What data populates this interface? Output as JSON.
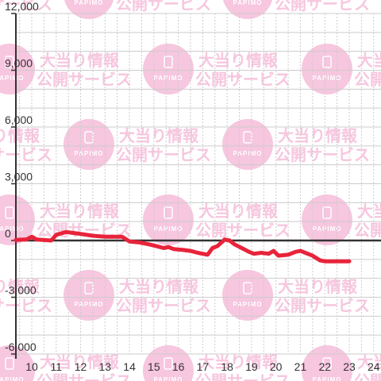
{
  "watermark": {
    "line1": "大当り情報",
    "line2": "公開サービス",
    "brand": "PAPIMO",
    "color": "#f7c6df"
  },
  "chart_data": {
    "type": "line",
    "series": [
      {
        "color": "#e8233a",
        "points": [
          [
            9.35,
            30
          ],
          [
            9.8,
            60
          ],
          [
            10.0,
            200
          ],
          [
            10.2,
            50
          ],
          [
            10.8,
            0
          ],
          [
            11.0,
            300
          ],
          [
            11.4,
            450
          ],
          [
            11.7,
            400
          ],
          [
            12.0,
            350
          ],
          [
            12.5,
            250
          ],
          [
            13.0,
            200
          ],
          [
            13.7,
            200
          ],
          [
            14.0,
            -50
          ],
          [
            14.4,
            -100
          ],
          [
            14.8,
            -200
          ],
          [
            15.1,
            -300
          ],
          [
            15.4,
            -400
          ],
          [
            15.6,
            -350
          ],
          [
            15.8,
            -450
          ],
          [
            16.2,
            -500
          ],
          [
            16.5,
            -550
          ],
          [
            16.8,
            -650
          ],
          [
            17.0,
            -700
          ],
          [
            17.2,
            -750
          ],
          [
            17.4,
            -400
          ],
          [
            17.6,
            -300
          ],
          [
            17.9,
            50
          ],
          [
            18.1,
            0
          ],
          [
            18.3,
            -200
          ],
          [
            18.6,
            -400
          ],
          [
            18.9,
            -600
          ],
          [
            19.1,
            -700
          ],
          [
            19.4,
            -650
          ],
          [
            19.7,
            -700
          ],
          [
            19.9,
            -550
          ],
          [
            20.1,
            -800
          ],
          [
            20.5,
            -750
          ],
          [
            20.8,
            -600
          ],
          [
            21.0,
            -550
          ],
          [
            21.2,
            -650
          ],
          [
            21.5,
            -800
          ],
          [
            21.8,
            -1050
          ],
          [
            22.0,
            -1100
          ],
          [
            22.5,
            -1100
          ],
          [
            23.0,
            -1100
          ]
        ]
      }
    ],
    "x_ticks": [
      "10",
      "11",
      "12",
      "13",
      "14",
      "15",
      "16",
      "17",
      "18",
      "19",
      "20",
      "21",
      "22",
      "23",
      "24"
    ],
    "x_tick_values": [
      10,
      11,
      12,
      13,
      14,
      15,
      16,
      17,
      18,
      19,
      20,
      21,
      22,
      23,
      24
    ],
    "y_ticks": [
      "12,000",
      "9,000",
      "6,000",
      "3,000",
      "0",
      "-3,000",
      "-6,000"
    ],
    "y_tick_values": [
      12000,
      9000,
      6000,
      3000,
      0,
      -3000,
      -6000
    ],
    "xlim": [
      9.35,
      24.3
    ],
    "ylim": [
      -6000,
      12000
    ],
    "grid": true,
    "gridline_color": "#cccccc",
    "zero_line_color": "#333333"
  }
}
